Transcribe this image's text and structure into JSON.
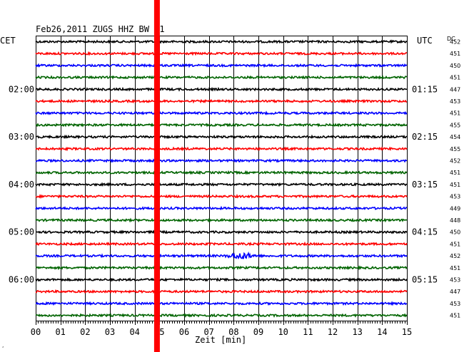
{
  "header": {
    "title": "Feb26,2011  ZUGS HHZ BW 01",
    "left_zone": "CET",
    "right_zone": "UTC",
    "dc_label": "DC"
  },
  "footer": {
    "xlabel": "Zeit [min]",
    "corner_mark": "‚"
  },
  "colors": {
    "trace_cycle": [
      "#000000",
      "#ff0000",
      "#0000ff",
      "#006400"
    ],
    "grid": "#000000",
    "event_marker": "#ff0000"
  },
  "chart_data": {
    "type": "line",
    "title": "Feb26,2011  ZUGS HHZ BW 01",
    "xlabel": "Zeit [min]",
    "xlim": [
      0,
      15
    ],
    "x_ticks": [
      "00",
      "01",
      "02",
      "03",
      "04",
      "05",
      "06",
      "07",
      "08",
      "09",
      "10",
      "11",
      "12",
      "13",
      "14",
      "15"
    ],
    "trace_count": 24,
    "trace_interval_min": 15,
    "cet_labels": [
      {
        "trace": 4,
        "text": "02:00"
      },
      {
        "trace": 8,
        "text": "03:00"
      },
      {
        "trace": 12,
        "text": "04:00"
      },
      {
        "trace": 16,
        "text": "05:00"
      },
      {
        "trace": 20,
        "text": "06:00"
      }
    ],
    "utc_labels": [
      {
        "trace": 4,
        "text": "01:15"
      },
      {
        "trace": 8,
        "text": "02:15"
      },
      {
        "trace": 12,
        "text": "03:15"
      },
      {
        "trace": 16,
        "text": "04:15"
      },
      {
        "trace": 20,
        "text": "05:15"
      }
    ],
    "dc_values": [
      "452",
      "451",
      "450",
      "451",
      "447",
      "453",
      "451",
      "455",
      "454",
      "455",
      "452",
      "451",
      "451",
      "453",
      "449",
      "448",
      "450",
      "451",
      "452",
      "451",
      "453",
      "447",
      "453",
      "451"
    ],
    "event_marker_min": 4.9,
    "event": {
      "trace": 18,
      "start_min": 7.6,
      "end_min": 9.0
    },
    "grid": true
  }
}
